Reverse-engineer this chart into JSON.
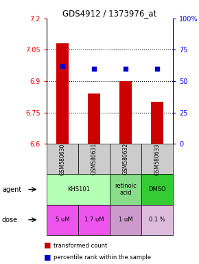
{
  "title": "GDS4912 / 1373976_at",
  "samples": [
    "GSM580630",
    "GSM580631",
    "GSM580632",
    "GSM580633"
  ],
  "bar_values": [
    7.08,
    6.84,
    6.9,
    6.8
  ],
  "bar_bottom": 6.6,
  "percentile_values": [
    62,
    60,
    60,
    60
  ],
  "ylim_left": [
    6.6,
    7.2
  ],
  "ylim_right": [
    0,
    100
  ],
  "yticks_left": [
    6.6,
    6.75,
    6.9,
    7.05,
    7.2
  ],
  "ytick_labels_left": [
    "6.6",
    "6.75",
    "6.9",
    "7.05",
    "7.2"
  ],
  "yticks_right": [
    0,
    25,
    50,
    75,
    100
  ],
  "ytick_labels_right": [
    "0",
    "25",
    "50",
    "75",
    "100%"
  ],
  "hlines": [
    6.75,
    6.9,
    7.05
  ],
  "bar_color": "#cc0000",
  "dot_color": "#0000cc",
  "dose_labels": [
    "5 uM",
    "1.7 uM",
    "1 uM",
    "0.1 %"
  ],
  "dose_colors": [
    "#ee55ee",
    "#ee55ee",
    "#cc99cc",
    "#ddbbdd"
  ],
  "sample_bg": "#cccccc",
  "agent_configs": [
    [
      0,
      2,
      "KHS101",
      "#b3ffb3"
    ],
    [
      2,
      1,
      "retinoic\nacid",
      "#88dd88"
    ],
    [
      3,
      1,
      "DMSO",
      "#33cc33"
    ]
  ],
  "legend_red": "transformed count",
  "legend_blue": "percentile rank within the sample"
}
